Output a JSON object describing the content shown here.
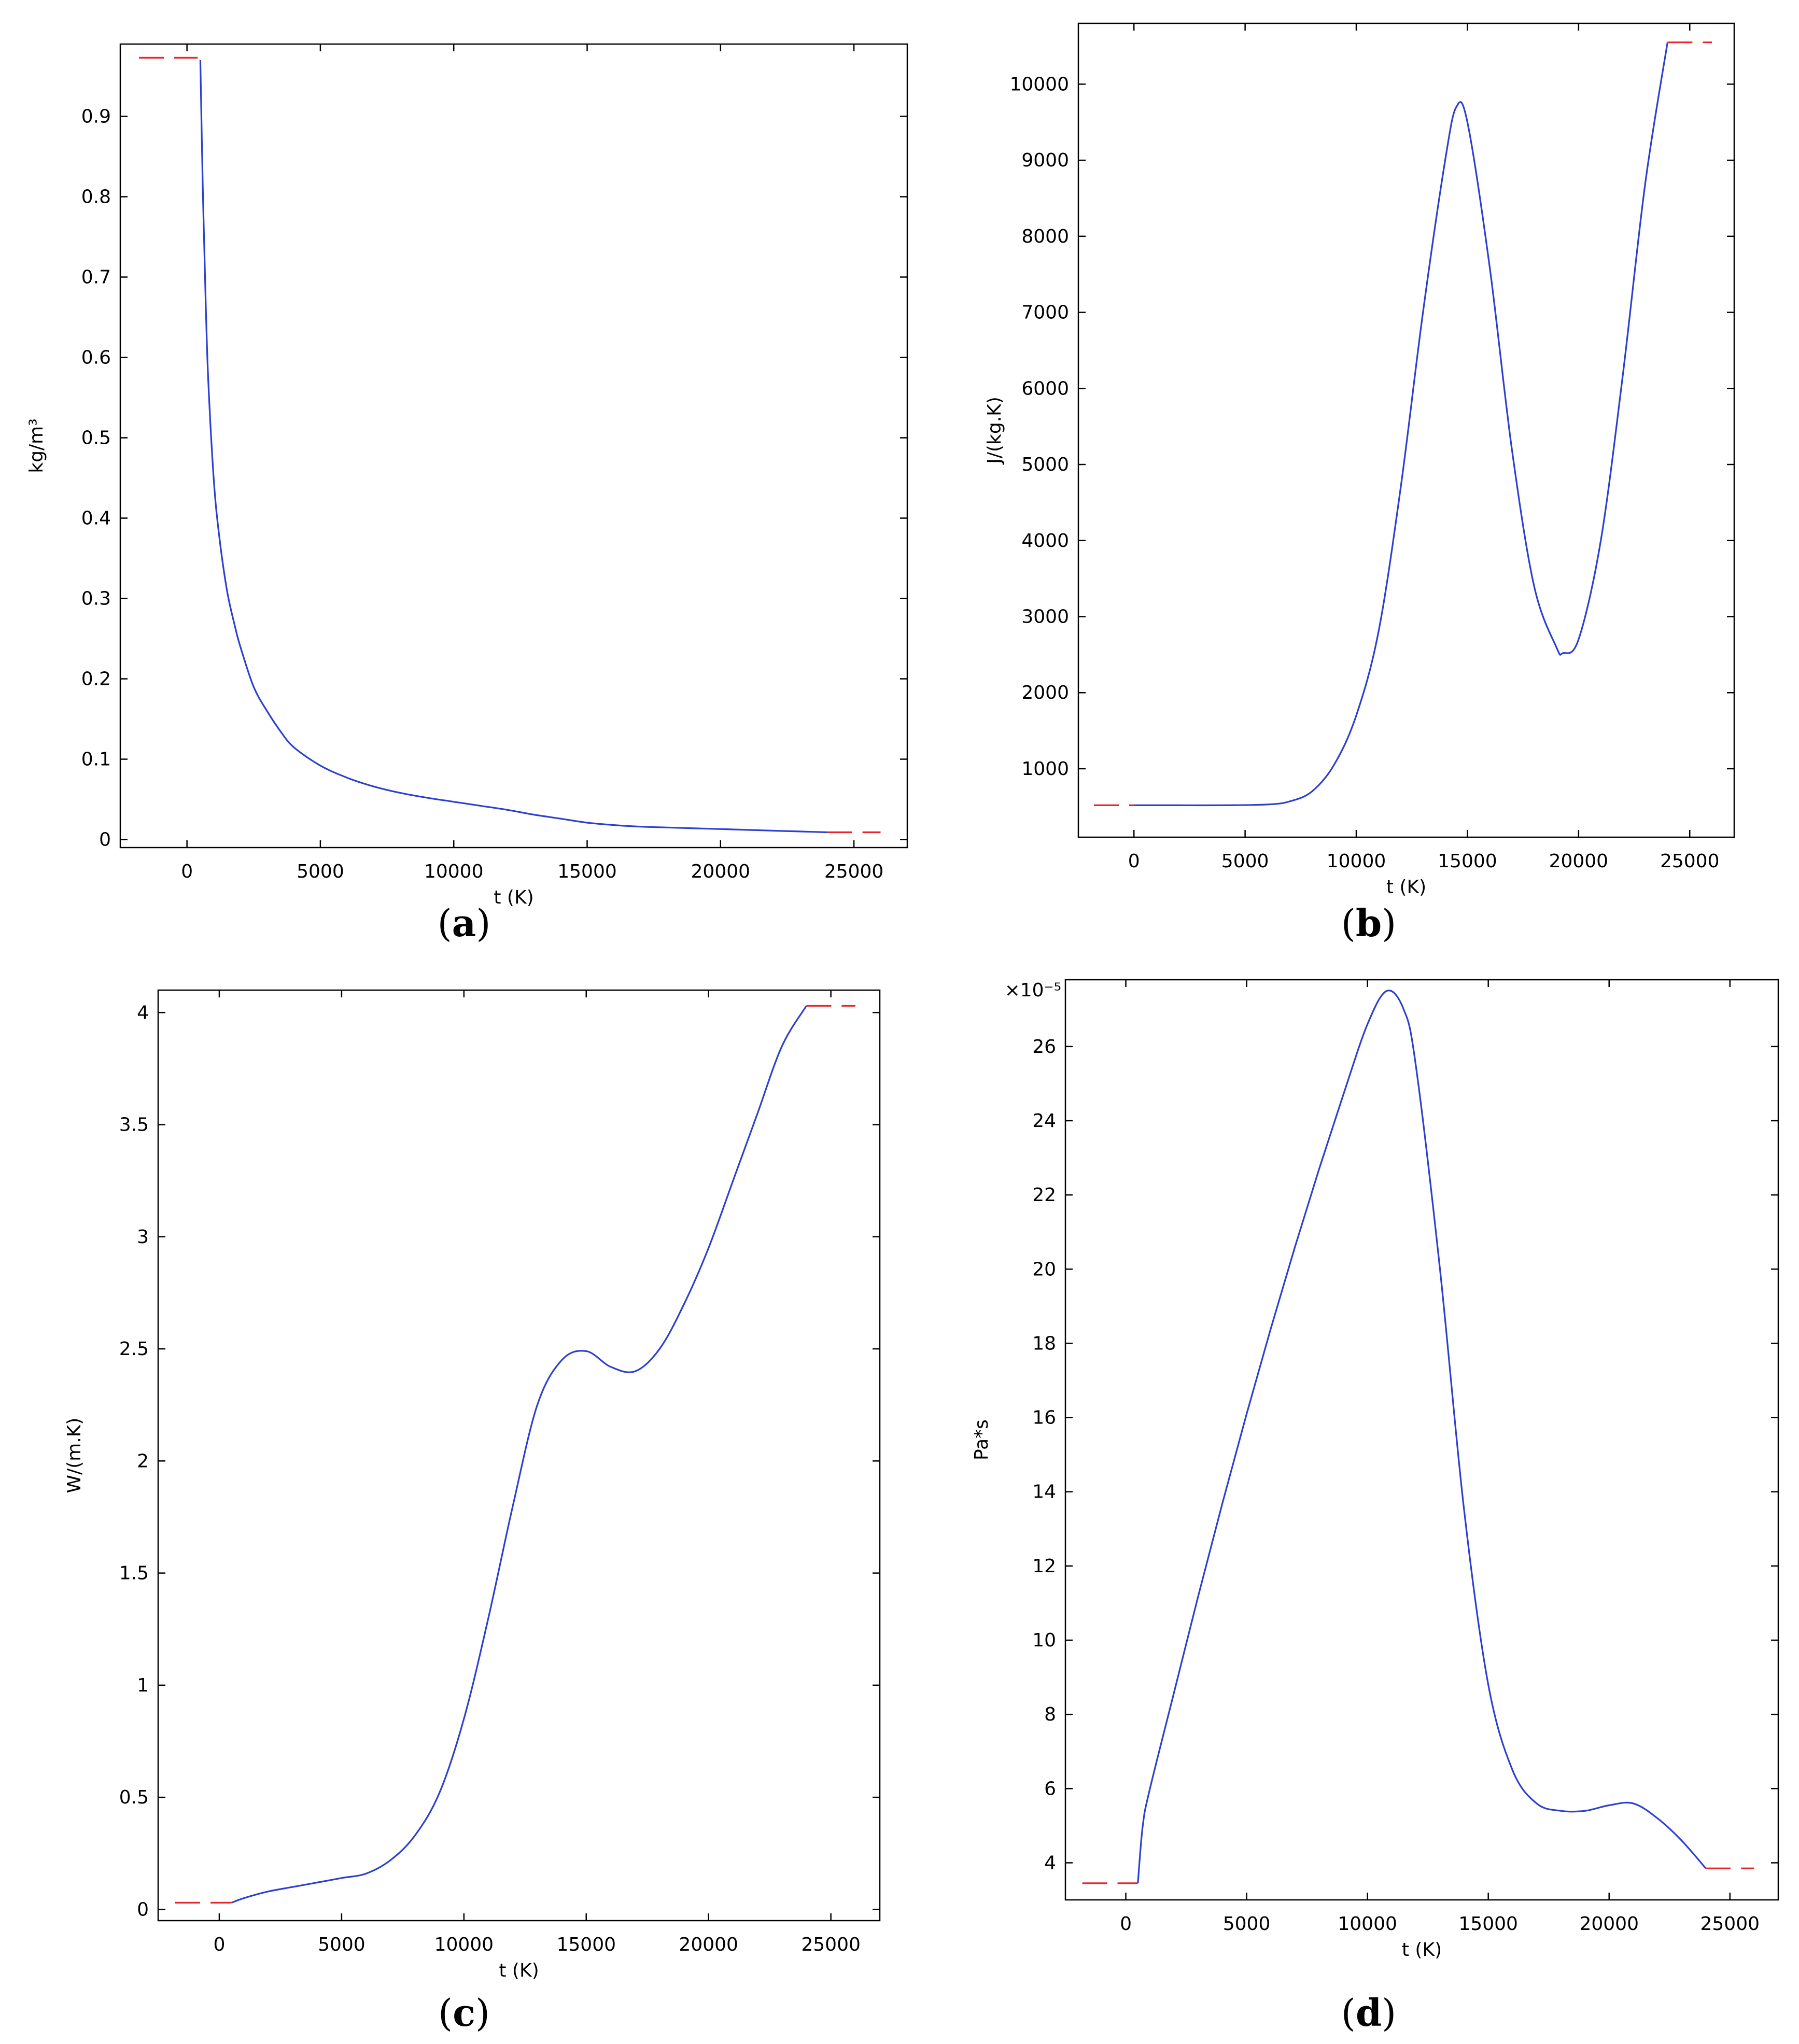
{
  "colors": {
    "curve": "#2b3fd1",
    "extrapolation": "#e8252a",
    "axes": "#000000",
    "background": "#ffffff"
  },
  "panels": [
    {
      "letter": "a",
      "open": "(",
      "close": ")"
    },
    {
      "letter": "b",
      "open": "(",
      "close": ")"
    },
    {
      "letter": "c",
      "open": "(",
      "close": ")"
    },
    {
      "letter": "d",
      "open": "(",
      "close": ")"
    }
  ],
  "chart_data": [
    {
      "type": "line",
      "panel": "a",
      "xlabel": "t (K)",
      "ylabel": "kg/m³",
      "xlim": [
        -2500,
        27000
      ],
      "ylim": [
        -0.01,
        0.99
      ],
      "xticks": [
        0,
        5000,
        10000,
        15000,
        20000,
        25000
      ],
      "yticks": [
        0,
        0.1,
        0.2,
        0.3,
        0.4,
        0.5,
        0.6,
        0.7,
        0.8,
        0.9
      ],
      "y_multiplier": "",
      "series": [
        {
          "style": "solid",
          "x": [
            500,
            600,
            700,
            800,
            1000,
            1200,
            1500,
            1800,
            2000,
            2500,
            3000,
            3500,
            4000,
            5000,
            6000,
            7000,
            8000,
            9000,
            10000,
            11000,
            12000,
            13000,
            14000,
            15000,
            16000,
            17000,
            18000,
            19000,
            20000,
            21000,
            22000,
            23000,
            24000
          ],
          "y": [
            0.97,
            0.8,
            0.67,
            0.57,
            0.45,
            0.38,
            0.31,
            0.265,
            0.24,
            0.19,
            0.16,
            0.135,
            0.115,
            0.092,
            0.077,
            0.066,
            0.058,
            0.052,
            0.047,
            0.042,
            0.037,
            0.031,
            0.026,
            0.021,
            0.018,
            0.016,
            0.015,
            0.014,
            0.013,
            0.012,
            0.011,
            0.01,
            0.009
          ]
        },
        {
          "style": "dashed",
          "x": [
            -1800,
            400
          ],
          "y": [
            0.973,
            0.973
          ]
        },
        {
          "style": "dashed",
          "x": [
            24000,
            26000
          ],
          "y": [
            0.009,
            0.009
          ]
        }
      ]
    },
    {
      "type": "line",
      "panel": "b",
      "xlabel": "t (K)",
      "ylabel": "J/(kg.K)",
      "xlim": [
        -2500,
        27000
      ],
      "ylim": [
        100,
        10800
      ],
      "xticks": [
        0,
        5000,
        10000,
        15000,
        20000,
        25000
      ],
      "yticks": [
        1000,
        2000,
        3000,
        4000,
        5000,
        6000,
        7000,
        8000,
        9000,
        10000
      ],
      "y_multiplier": "",
      "series": [
        {
          "style": "solid",
          "x": [
            0,
            2000,
            4000,
            6000,
            7000,
            8000,
            9000,
            10000,
            11000,
            12000,
            13000,
            14000,
            14500,
            15000,
            16000,
            17000,
            18000,
            19000,
            19300,
            20000,
            21000,
            22000,
            23000,
            24000
          ],
          "y": [
            520,
            520,
            520,
            530,
            570,
            700,
            1050,
            1700,
            2800,
            4700,
            7000,
            9000,
            9700,
            9500,
            7600,
            5200,
            3400,
            2600,
            2520,
            2700,
            4000,
            6200,
            8700,
            10550
          ]
        },
        {
          "style": "dashed",
          "x": [
            -1800,
            0
          ],
          "y": [
            520,
            520
          ]
        },
        {
          "style": "dashed",
          "x": [
            24000,
            26000
          ],
          "y": [
            10550,
            10550
          ]
        }
      ]
    },
    {
      "type": "line",
      "panel": "c",
      "xlabel": "t (K)",
      "ylabel": "W/(m.K)",
      "xlim": [
        -2500,
        27000
      ],
      "ylim": [
        -0.05,
        4.1
      ],
      "xticks": [
        0,
        5000,
        10000,
        15000,
        20000,
        25000
      ],
      "yticks": [
        0,
        0.5,
        1,
        1.5,
        2,
        2.5,
        3,
        3.5,
        4
      ],
      "y_multiplier": "",
      "series": [
        {
          "style": "solid",
          "x": [
            500,
            1000,
            2000,
            3000,
            4000,
            5000,
            6000,
            7000,
            8000,
            9000,
            10000,
            11000,
            12000,
            13000,
            14000,
            15000,
            16000,
            17000,
            18000,
            19000,
            20000,
            21000,
            22000,
            23000,
            24000
          ],
          "y": [
            0.03,
            0.05,
            0.08,
            0.1,
            0.12,
            0.14,
            0.16,
            0.22,
            0.33,
            0.52,
            0.85,
            1.3,
            1.8,
            2.25,
            2.45,
            2.49,
            2.42,
            2.4,
            2.5,
            2.7,
            2.95,
            3.25,
            3.55,
            3.85,
            4.03
          ]
        },
        {
          "style": "dashed",
          "x": [
            -1800,
            500
          ],
          "y": [
            0.03,
            0.03
          ]
        },
        {
          "style": "dashed",
          "x": [
            24000,
            26000
          ],
          "y": [
            4.03,
            4.03
          ]
        }
      ]
    },
    {
      "type": "line",
      "panel": "d",
      "xlabel": "t (K)",
      "ylabel": "Pa*s",
      "xlim": [
        -2500,
        27000
      ],
      "ylim": [
        3.0,
        27.8
      ],
      "xticks": [
        0,
        5000,
        10000,
        15000,
        20000,
        25000
      ],
      "yticks": [
        4,
        6,
        8,
        10,
        12,
        14,
        16,
        18,
        20,
        22,
        24,
        26
      ],
      "y_multiplier": "×10⁻⁵",
      "series": [
        {
          "style": "solid",
          "x": [
            500,
            700,
            1000,
            2000,
            3000,
            4000,
            5000,
            6000,
            7000,
            8000,
            9000,
            10000,
            10800,
            11500,
            12000,
            13000,
            14000,
            15000,
            16000,
            17000,
            18000,
            19000,
            20000,
            21000,
            22000,
            23000,
            24000
          ],
          "y": [
            3.45,
            5.0,
            6.0,
            8.6,
            11.2,
            13.7,
            16.1,
            18.4,
            20.6,
            22.7,
            24.7,
            26.6,
            27.5,
            27.0,
            25.5,
            20.0,
            13.5,
            8.8,
            6.5,
            5.6,
            5.4,
            5.4,
            5.55,
            5.6,
            5.2,
            4.6,
            3.85
          ]
        },
        {
          "style": "dashed",
          "x": [
            -1800,
            500
          ],
          "y": [
            3.45,
            3.45
          ]
        },
        {
          "style": "dashed",
          "x": [
            24000,
            26000
          ],
          "y": [
            3.85,
            3.85
          ]
        }
      ]
    }
  ]
}
